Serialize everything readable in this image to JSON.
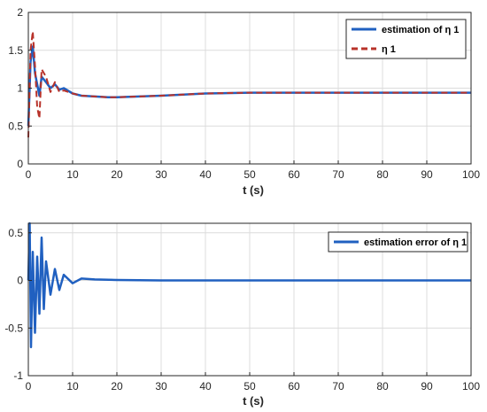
{
  "chart_data": [
    {
      "type": "line",
      "xlabel": "t (s)",
      "ylabel": "",
      "xlim": [
        0,
        100
      ],
      "ylim": [
        0,
        2
      ],
      "xticks": [
        "0",
        "10",
        "20",
        "30",
        "40",
        "50",
        "60",
        "70",
        "80",
        "90",
        "100"
      ],
      "yticks": [
        "0",
        "0.5",
        "1",
        "1.5",
        "2"
      ],
      "grid": true,
      "legend_position": "top-right",
      "legend": [
        "estimation of η 1",
        "η 1"
      ],
      "series": [
        {
          "name": "estimation of η 1",
          "color": "#2060c0",
          "style": "solid",
          "x": [
            0,
            0.5,
            1,
            1.5,
            2,
            2.5,
            3,
            4,
            5,
            6,
            7,
            8,
            10,
            12,
            15,
            18,
            20,
            25,
            30,
            40,
            50,
            60,
            70,
            80,
            90,
            100
          ],
          "y": [
            0.5,
            1.35,
            1.55,
            1.2,
            1.05,
            0.9,
            1.15,
            1.08,
            1.0,
            1.05,
            0.98,
            1.0,
            0.93,
            0.9,
            0.89,
            0.88,
            0.88,
            0.89,
            0.9,
            0.93,
            0.94,
            0.94,
            0.94,
            0.94,
            0.94,
            0.94
          ]
        },
        {
          "name": "η 1",
          "color": "#b8322a",
          "style": "dashed",
          "x": [
            0,
            0.5,
            1,
            1.5,
            2,
            2.5,
            3,
            4,
            5,
            6,
            7,
            8,
            10,
            12,
            15,
            18,
            20,
            25,
            30,
            40,
            50,
            60,
            70,
            80,
            90,
            100
          ],
          "y": [
            0.35,
            1.5,
            1.75,
            1.3,
            0.75,
            0.6,
            1.25,
            1.15,
            0.95,
            1.08,
            0.95,
            0.97,
            0.93,
            0.9,
            0.89,
            0.88,
            0.88,
            0.89,
            0.9,
            0.93,
            0.94,
            0.94,
            0.94,
            0.94,
            0.94,
            0.94
          ]
        }
      ]
    },
    {
      "type": "line",
      "xlabel": "t (s)",
      "ylabel": "",
      "xlim": [
        0,
        100
      ],
      "ylim": [
        -1,
        0.6
      ],
      "xticks": [
        "0",
        "10",
        "20",
        "30",
        "40",
        "50",
        "60",
        "70",
        "80",
        "90",
        "100"
      ],
      "yticks": [
        "-1",
        "-0.5",
        "0",
        "0.5"
      ],
      "grid": true,
      "legend_position": "top-right",
      "legend": [
        "estimation error of η 1"
      ],
      "series": [
        {
          "name": "estimation error of η 1",
          "color": "#2060c0",
          "style": "solid",
          "x": [
            0,
            0.3,
            0.6,
            1,
            1.5,
            2,
            2.5,
            3,
            3.5,
            4,
            5,
            6,
            7,
            8,
            10,
            12,
            15,
            20,
            30,
            50,
            70,
            100
          ],
          "y": [
            0,
            0.6,
            -0.7,
            0.3,
            -0.55,
            0.25,
            -0.35,
            0.45,
            -0.3,
            0.2,
            -0.15,
            0.12,
            -0.1,
            0.06,
            -0.03,
            0.02,
            0.01,
            0.005,
            0.0,
            0.0,
            0.0,
            0.0
          ]
        }
      ]
    }
  ]
}
